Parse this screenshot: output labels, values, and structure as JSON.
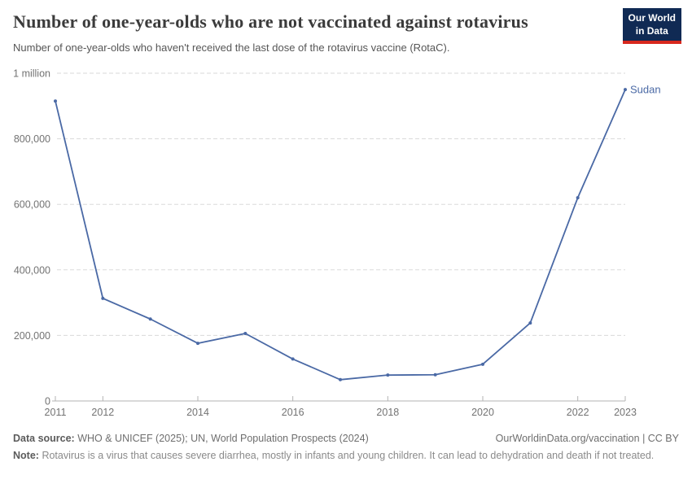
{
  "header": {
    "logo_line1": "Our World",
    "logo_line2": "in Data"
  },
  "chart_data": {
    "type": "line",
    "title": "Number of one-year-olds who are not vaccinated against rotavirus",
    "subtitle": "Number of one-year-olds who haven't received the last dose of the rotavirus vaccine (RotaC).",
    "x": [
      2011,
      2012,
      2013,
      2014,
      2015,
      2016,
      2017,
      2018,
      2019,
      2020,
      2021,
      2022,
      2023
    ],
    "series": [
      {
        "name": "Sudan",
        "values": [
          915000,
          313000,
          250000,
          176000,
          206000,
          128000,
          65000,
          79000,
          80000,
          112000,
          238000,
          620000,
          950000
        ]
      }
    ],
    "xlim": [
      2011,
      2023
    ],
    "ylim": [
      0,
      1000000
    ],
    "y_ticks": [
      {
        "v": 0,
        "label": "0"
      },
      {
        "v": 200000,
        "label": "200,000"
      },
      {
        "v": 400000,
        "label": "400,000"
      },
      {
        "v": 600000,
        "label": "600,000"
      },
      {
        "v": 800000,
        "label": "800,000"
      },
      {
        "v": 1000000,
        "label": "1 million"
      }
    ],
    "x_tick_labels": [
      2011,
      2012,
      2014,
      2016,
      2018,
      2020,
      2022,
      2023
    ],
    "grid": "horizontal-dashed",
    "legend": "end-of-line entity label",
    "entity_label": "Sudan"
  },
  "footer": {
    "source_label": "Data source:",
    "source_text": "WHO & UNICEF (2025); UN, World Population Prospects (2024)",
    "link": "OurWorldinData.org/vaccination | CC BY",
    "note_label": "Note:",
    "note_text": "Rotavirus is a virus that causes severe diarrhea, mostly in infants and young children. It can lead to dehydration and death if not treated."
  },
  "colors": {
    "line": "#4a69a5",
    "entity_label": "#4a69a5",
    "grid": "#dadada",
    "axis": "#b3b3b3",
    "tick_text": "#737373",
    "title_text": "#3b3b3b",
    "logo_bg": "#102a54",
    "logo_bar": "#d7281e"
  }
}
